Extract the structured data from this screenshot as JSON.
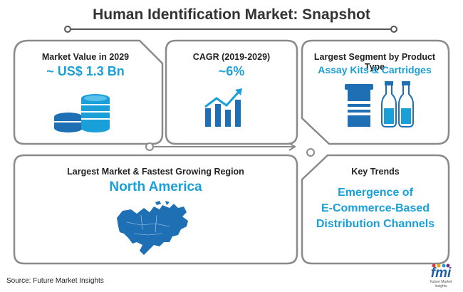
{
  "title": "Human Identification Market: Snapshot",
  "panels": {
    "market_value": {
      "label": "Market Value in 2029",
      "value": "~ US$ 1.3 Bn"
    },
    "cagr": {
      "label": "CAGR (2019-2029)",
      "value": "~6%"
    },
    "segment": {
      "label": "Largest Segment by Product Type",
      "value": "Assay Kits & Cartridges"
    },
    "region": {
      "label": "Largest Market & Fastest Growing Region",
      "value": "North America"
    },
    "trends": {
      "label": "Key Trends",
      "lines": [
        "Emergence of",
        "E-Commerce-Based",
        "Distribution Channels"
      ]
    }
  },
  "source": "Source: Future Market Insights",
  "logo": {
    "main": "fmi",
    "sub": "Future Market Insights"
  },
  "colors": {
    "accent": "#1a9fd8",
    "icon_blue": "#1f6fb5",
    "frame_gray": "#8a8a8a"
  }
}
